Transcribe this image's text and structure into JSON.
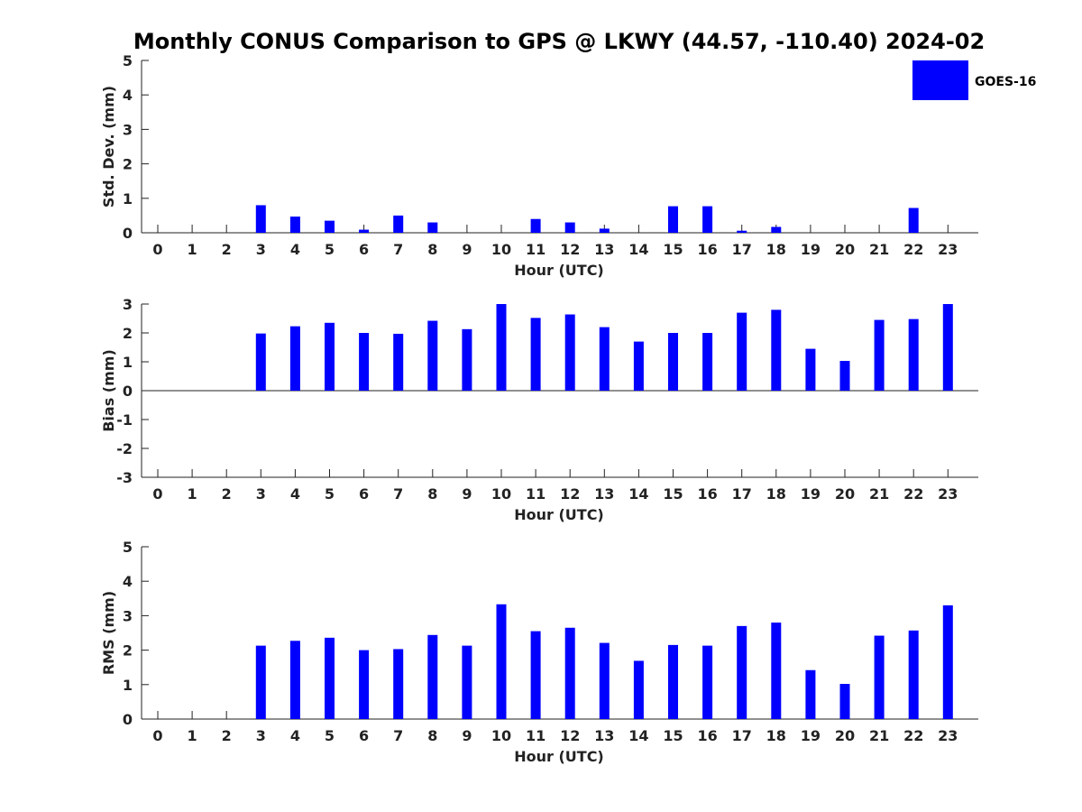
{
  "chart_data": {
    "title": "Monthly CONUS Comparison to GPS @ LKWY (44.57, -110.40) 2024-02",
    "legend": {
      "label": "GOES-16",
      "color": "#0000ff",
      "placement": "top-right"
    },
    "panels": [
      {
        "type": "bar",
        "name": "std",
        "ylabel": "Std. Dev. (mm)",
        "xlabel": "Hour (UTC)",
        "ylim": [
          0,
          5
        ],
        "yticks": [
          0,
          1,
          2,
          3,
          4,
          5
        ],
        "categories": [
          0,
          1,
          2,
          3,
          4,
          5,
          6,
          7,
          8,
          9,
          10,
          11,
          12,
          13,
          14,
          15,
          16,
          17,
          18,
          19,
          20,
          21,
          22,
          23
        ],
        "values": [
          null,
          null,
          null,
          0.8,
          0.47,
          0.35,
          0.09,
          0.5,
          0.3,
          null,
          null,
          0.4,
          0.3,
          0.12,
          null,
          0.77,
          0.77,
          0.06,
          0.17,
          null,
          null,
          null,
          0.72,
          null
        ]
      },
      {
        "type": "bar",
        "name": "bias",
        "ylabel": "Bias (mm)",
        "xlabel": "Hour (UTC)",
        "ylim": [
          -3,
          3
        ],
        "yticks": [
          -3,
          -2,
          -1,
          0,
          1,
          2,
          3
        ],
        "categories": [
          0,
          1,
          2,
          3,
          4,
          5,
          6,
          7,
          8,
          9,
          10,
          11,
          12,
          13,
          14,
          15,
          16,
          17,
          18,
          19,
          20,
          21,
          22,
          23
        ],
        "values": [
          null,
          null,
          null,
          1.98,
          2.23,
          2.35,
          2.0,
          1.97,
          2.42,
          2.13,
          3.0,
          2.52,
          2.64,
          2.2,
          1.7,
          2.0,
          2.0,
          2.7,
          2.8,
          1.45,
          1.03,
          2.45,
          2.48,
          3.0
        ]
      },
      {
        "type": "bar",
        "name": "rms",
        "ylabel": "RMS (mm)",
        "xlabel": "Hour (UTC)",
        "ylim": [
          0,
          5
        ],
        "yticks": [
          0,
          1,
          2,
          3,
          4,
          5
        ],
        "categories": [
          0,
          1,
          2,
          3,
          4,
          5,
          6,
          7,
          8,
          9,
          10,
          11,
          12,
          13,
          14,
          15,
          16,
          17,
          18,
          19,
          20,
          21,
          22,
          23
        ],
        "values": [
          null,
          null,
          null,
          2.13,
          2.27,
          2.36,
          2.0,
          2.03,
          2.44,
          2.13,
          3.33,
          2.55,
          2.65,
          2.21,
          1.69,
          2.15,
          2.13,
          2.7,
          2.8,
          1.42,
          1.02,
          2.42,
          2.57,
          3.3
        ]
      }
    ]
  }
}
